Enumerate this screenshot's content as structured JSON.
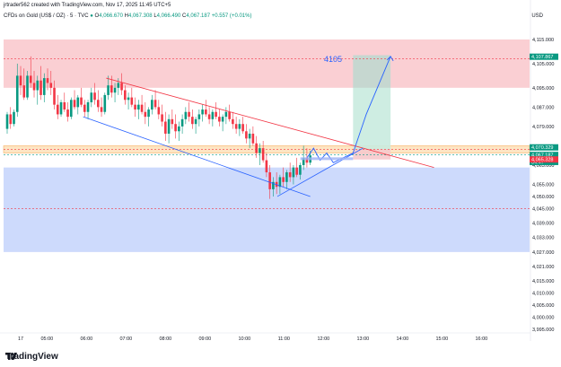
{
  "header": {
    "credit": "jrtrader562 created with TradingView.com, Nov 17, 2025 11:45 UTC+5",
    "instrument": "CFDs on Gold (US$ / OZ) · 5 · TVC",
    "ohlc_prefix_o": "O",
    "o": "4,066.670",
    "ohlc_prefix_h": "H",
    "h": "4,067.308",
    "ohlc_prefix_l": "L",
    "l": "4,066.490",
    "ohlc_prefix_c": "C",
    "c": "4,067.187",
    "change": "+0.557 (+0.01%)",
    "currency": "USD"
  },
  "footer": {
    "brand": "TradingView",
    "logo_icon": "tradingview-logo-icon"
  },
  "colors": {
    "up": "#089981",
    "down": "#f23645",
    "resistance_zone": "#f9c7cb",
    "support_zone": "#c4d3fb",
    "pivot_zone": "#fde2bd",
    "target_zone": "#c9ebdf",
    "stop_zone": "#f6c9cc",
    "projection": "#2962ff"
  },
  "chart_data": {
    "type": "candlestick",
    "y_axis_ticks": [
      "4,115.000",
      "4,105.000",
      "4,095.000",
      "4,087.000",
      "4,079.000",
      "4,070.000",
      "4,063.000",
      "4,055.000",
      "4,050.000",
      "4,045.000",
      "4,039.000",
      "4,033.000",
      "4,027.000",
      "4,021.000",
      "4,015.000",
      "4,010.000",
      "4,005.000",
      "4,000.000",
      "3,995.000"
    ],
    "y_axis_tick_values": [
      4115,
      4105,
      4095,
      4087,
      4079,
      4070,
      4063,
      4055,
      4050,
      4045,
      4039,
      4033,
      4027,
      4021,
      4015,
      4010,
      4005,
      4000,
      3995
    ],
    "x_axis_ticks": [
      "17",
      "05:00",
      "06:00",
      "07:00",
      "08:00",
      "09:00",
      "10:00",
      "11:00",
      "12:00",
      "13:00",
      "14:00",
      "15:00",
      "16:00"
    ],
    "price_tags": [
      {
        "label": "4,107.867",
        "value": 4107.867,
        "style": "green"
      },
      {
        "label": "4,070.329",
        "value": 4070.329,
        "style": "green"
      },
      {
        "label": "4,067.187",
        "value": 4067.187,
        "style": "green"
      },
      {
        "label": "04:47",
        "value": 4064.3,
        "style": "green"
      },
      {
        "label": "4,065.328",
        "value": 4065.328,
        "style": "red"
      }
    ],
    "annotation": "4105",
    "zones": [
      {
        "name": "resistance",
        "from": 4095,
        "to": 4115
      },
      {
        "name": "pivot",
        "from": 4068,
        "to": 4071
      },
      {
        "name": "support",
        "from": 4027,
        "to": 4062
      }
    ],
    "dashed_levels": [
      4107.0,
      4069.5,
      4067.2,
      4045.0
    ],
    "position": {
      "entry": 4069.5,
      "target": 4108.5,
      "stop": 4065.3,
      "start": "12:45",
      "end": "13:42"
    },
    "trend_lines": [
      {
        "name": "upper-channel",
        "points": [
          [
            "06:30",
            4099
          ],
          [
            "14:48",
            4062
          ]
        ]
      },
      {
        "name": "lower-channel",
        "points": [
          [
            "05:55",
            4083
          ],
          [
            "11:40",
            4050
          ]
        ]
      },
      {
        "name": "support-line",
        "points": [
          [
            "10:50",
            4050
          ],
          [
            "13:00",
            4070
          ]
        ]
      }
    ],
    "projection": [
      [
        "11:35",
        4066
      ],
      [
        "11:45",
        4070
      ],
      [
        "11:55",
        4065
      ],
      [
        "12:05",
        4068
      ],
      [
        "12:15",
        4064
      ],
      [
        "12:45",
        4068
      ],
      [
        "13:00",
        4080
      ],
      [
        "13:05",
        4084
      ],
      [
        "13:42",
        4108
      ]
    ],
    "candles": [
      [
        4078,
        4085,
        4076,
        4084
      ],
      [
        4084,
        4087,
        4078,
        4080
      ],
      [
        4080,
        4086,
        4079,
        4085
      ],
      [
        4085,
        4105,
        4083,
        4100
      ],
      [
        4100,
        4104,
        4092,
        4096
      ],
      [
        4096,
        4103,
        4090,
        4091
      ],
      [
        4091,
        4102,
        4090,
        4100
      ],
      [
        4100,
        4108,
        4095,
        4097
      ],
      [
        4097,
        4102,
        4091,
        4094
      ],
      [
        4094,
        4100,
        4088,
        4098
      ],
      [
        4098,
        4104,
        4090,
        4092
      ],
      [
        4092,
        4101,
        4089,
        4099
      ],
      [
        4099,
        4103,
        4094,
        4097
      ],
      [
        4097,
        4102,
        4092,
        4095
      ],
      [
        4095,
        4098,
        4086,
        4088
      ],
      [
        4088,
        4092,
        4082,
        4084
      ],
      [
        4084,
        4090,
        4083,
        4089
      ],
      [
        4089,
        4093,
        4085,
        4086
      ],
      [
        4086,
        4089,
        4081,
        4083
      ],
      [
        4083,
        4091,
        4082,
        4090
      ],
      [
        4090,
        4094,
        4086,
        4087
      ],
      [
        4087,
        4092,
        4084,
        4091
      ],
      [
        4091,
        4095,
        4087,
        4088
      ],
      [
        4088,
        4090,
        4083,
        4085
      ],
      [
        4085,
        4090,
        4082,
        4089
      ],
      [
        4089,
        4095,
        4087,
        4093
      ],
      [
        4093,
        4097,
        4088,
        4090
      ],
      [
        4090,
        4094,
        4085,
        4087
      ],
      [
        4087,
        4091,
        4083,
        4085
      ],
      [
        4085,
        4093,
        4084,
        4092
      ],
      [
        4092,
        4100,
        4090,
        4096
      ],
      [
        4096,
        4100,
        4091,
        4093
      ],
      [
        4093,
        4097,
        4089,
        4095
      ],
      [
        4095,
        4099,
        4092,
        4097
      ],
      [
        4097,
        4101,
        4092,
        4094
      ],
      [
        4094,
        4096,
        4088,
        4090
      ],
      [
        4090,
        4093,
        4086,
        4091
      ],
      [
        4091,
        4095,
        4087,
        4088
      ],
      [
        4088,
        4091,
        4083,
        4086
      ],
      [
        4086,
        4090,
        4082,
        4088
      ],
      [
        4088,
        4092,
        4084,
        4085
      ],
      [
        4085,
        4089,
        4080,
        4083
      ],
      [
        4083,
        4087,
        4079,
        4086
      ],
      [
        4086,
        4092,
        4084,
        4090
      ],
      [
        4090,
        4094,
        4086,
        4087
      ],
      [
        4087,
        4090,
        4082,
        4084
      ],
      [
        4084,
        4088,
        4079,
        4081
      ],
      [
        4081,
        4085,
        4073,
        4076
      ],
      [
        4076,
        4084,
        4072,
        4082
      ],
      [
        4082,
        4086,
        4078,
        4080
      ],
      [
        4080,
        4084,
        4074,
        4077
      ],
      [
        4077,
        4081,
        4073,
        4079
      ],
      [
        4079,
        4084,
        4076,
        4082
      ],
      [
        4082,
        4087,
        4080,
        4085
      ],
      [
        4085,
        4089,
        4081,
        4083
      ],
      [
        4083,
        4086,
        4078,
        4080
      ],
      [
        4080,
        4083,
        4076,
        4082
      ],
      [
        4082,
        4086,
        4079,
        4084
      ],
      [
        4084,
        4088,
        4081,
        4086
      ],
      [
        4086,
        4090,
        4083,
        4084
      ],
      [
        4084,
        4087,
        4080,
        4082
      ],
      [
        4082,
        4086,
        4079,
        4085
      ],
      [
        4085,
        4089,
        4082,
        4083
      ],
      [
        4083,
        4086,
        4079,
        4081
      ],
      [
        4081,
        4084,
        4077,
        4083
      ],
      [
        4083,
        4087,
        4080,
        4085
      ],
      [
        4085,
        4088,
        4081,
        4082
      ],
      [
        4082,
        4085,
        4078,
        4080
      ],
      [
        4080,
        4083,
        4076,
        4078
      ],
      [
        4078,
        4082,
        4075,
        4080
      ],
      [
        4080,
        4083,
        4076,
        4077
      ],
      [
        4077,
        4080,
        4072,
        4074
      ],
      [
        4074,
        4078,
        4070,
        4076
      ],
      [
        4076,
        4079,
        4071,
        4072
      ],
      [
        4072,
        4075,
        4066,
        4068
      ],
      [
        4068,
        4072,
        4063,
        4070
      ],
      [
        4070,
        4073,
        4064,
        4065
      ],
      [
        4065,
        4068,
        4058,
        4060
      ],
      [
        4060,
        4063,
        4049,
        4053
      ],
      [
        4053,
        4058,
        4050,
        4056
      ],
      [
        4056,
        4060,
        4051,
        4054
      ],
      [
        4054,
        4059,
        4051,
        4058
      ],
      [
        4058,
        4062,
        4054,
        4056
      ],
      [
        4056,
        4061,
        4053,
        4060
      ],
      [
        4060,
        4064,
        4056,
        4058
      ],
      [
        4058,
        4063,
        4055,
        4062
      ],
      [
        4062,
        4066,
        4058,
        4059
      ],
      [
        4059,
        4064,
        4057,
        4063
      ],
      [
        4063,
        4071,
        4061,
        4066
      ],
      [
        4066,
        4070,
        4062,
        4064
      ],
      [
        4064,
        4069,
        4063,
        4067
      ]
    ]
  }
}
